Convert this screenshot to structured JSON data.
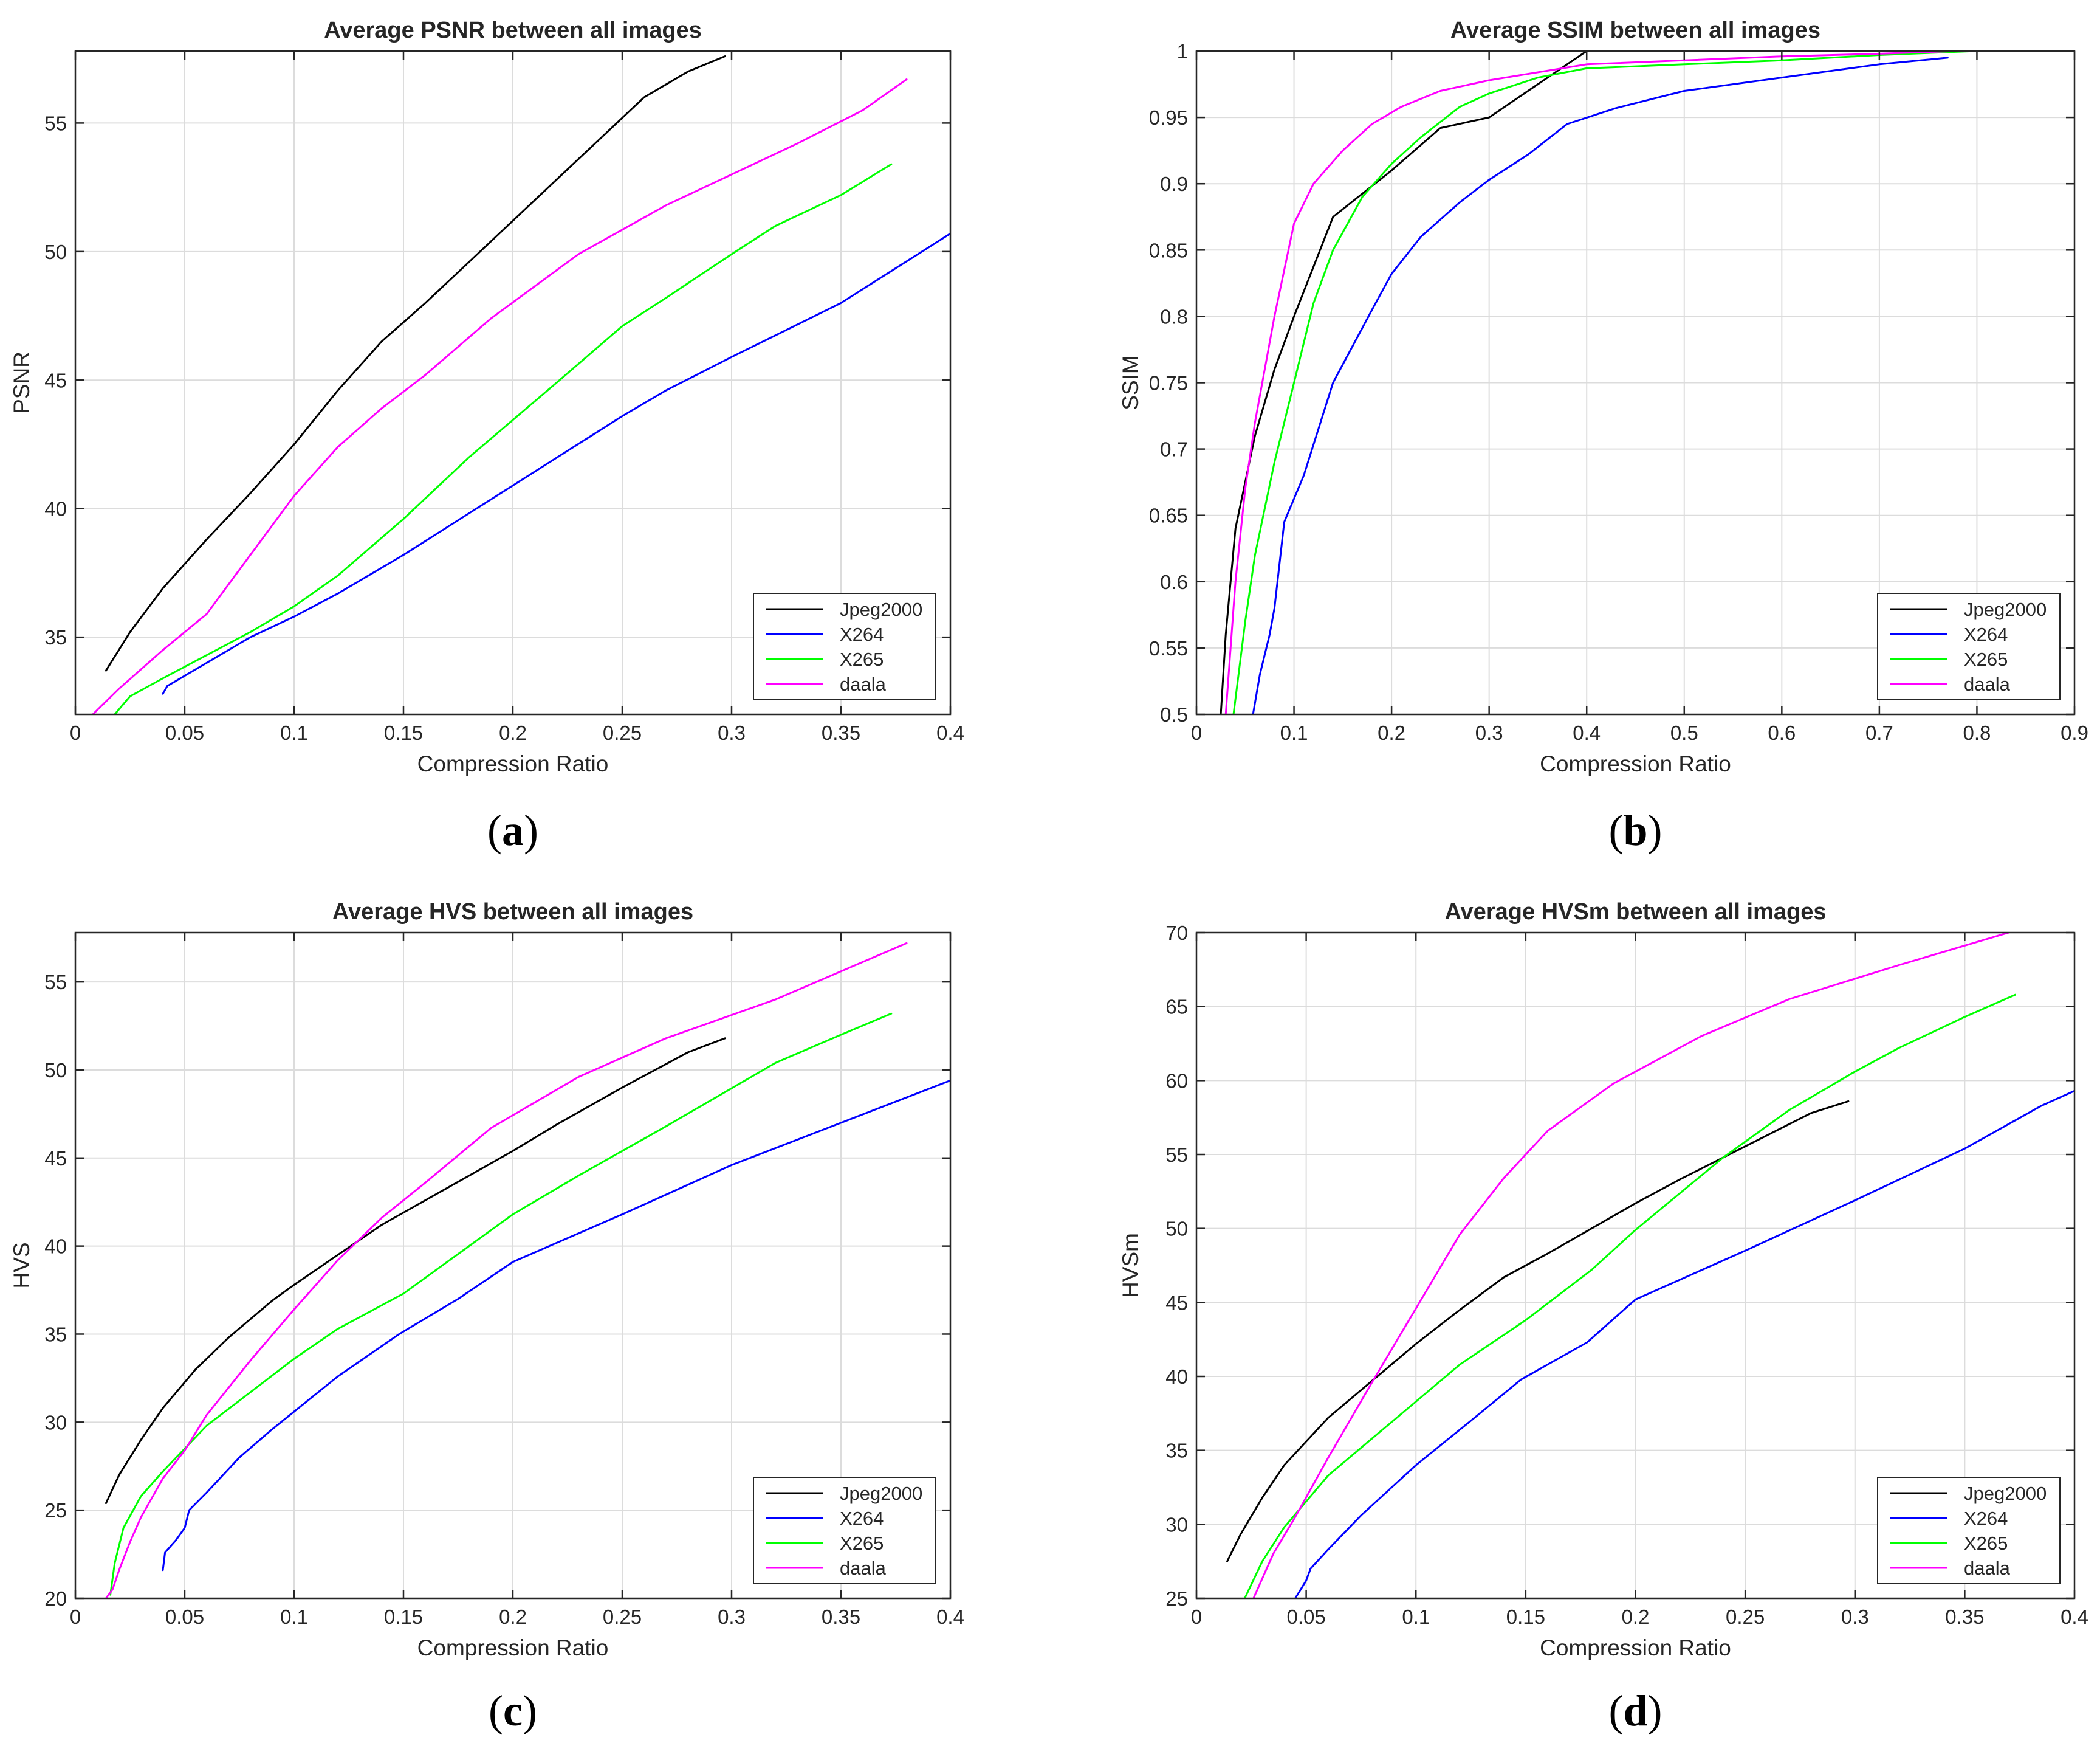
{
  "colors": {
    "Jpeg2000": "#000000",
    "X264": "#0000ff",
    "X265": "#00ff00",
    "daala": "#ff00ff"
  },
  "legend": [
    "Jpeg2000",
    "X264",
    "X265",
    "daala"
  ],
  "chart_data": [
    {
      "id": "a",
      "type": "line",
      "caption": "a",
      "title": "Average PSNR between all images",
      "xlabel": "Compression Ratio",
      "ylabel": "PSNR",
      "xlim": [
        0,
        0.4
      ],
      "ylim": [
        32,
        57.8
      ],
      "xticks": [
        0,
        0.05,
        0.1,
        0.15,
        0.2,
        0.25,
        0.3,
        0.35,
        0.4
      ],
      "xtick_labels": [
        "0",
        "0.05",
        "0.1",
        "0.15",
        "0.2",
        "0.25",
        "0.3",
        "0.35",
        "0.4"
      ],
      "yticks": [
        35,
        40,
        45,
        50,
        55
      ],
      "ytick_labels": [
        "35",
        "40",
        "45",
        "50",
        "55"
      ],
      "grid": true,
      "legend_position": "bottom-right",
      "series": [
        {
          "name": "Jpeg2000",
          "x": [
            0.014,
            0.025,
            0.04,
            0.06,
            0.08,
            0.1,
            0.12,
            0.14,
            0.16,
            0.18,
            0.2,
            0.22,
            0.24,
            0.26,
            0.28,
            0.297
          ],
          "y": [
            33.7,
            35.2,
            36.9,
            38.8,
            40.6,
            42.5,
            44.6,
            46.5,
            48.0,
            49.6,
            51.2,
            52.8,
            54.4,
            56.0,
            57.0,
            57.6
          ]
        },
        {
          "name": "X264",
          "x": [
            0.04,
            0.042,
            0.05,
            0.06,
            0.08,
            0.1,
            0.12,
            0.15,
            0.2,
            0.25,
            0.27,
            0.3,
            0.35,
            0.4
          ],
          "y": [
            32.8,
            33.1,
            33.5,
            34.0,
            35.0,
            35.8,
            36.7,
            38.2,
            40.9,
            43.6,
            44.6,
            45.9,
            48.0,
            50.7
          ]
        },
        {
          "name": "X265",
          "x": [
            0.018,
            0.025,
            0.04,
            0.06,
            0.08,
            0.1,
            0.12,
            0.15,
            0.18,
            0.22,
            0.25,
            0.27,
            0.3,
            0.32,
            0.35,
            0.373
          ],
          "y": [
            32.0,
            32.7,
            33.4,
            34.3,
            35.2,
            36.2,
            37.4,
            39.6,
            42.0,
            44.9,
            47.1,
            48.2,
            49.9,
            51.0,
            52.2,
            53.4
          ]
        },
        {
          "name": "daala",
          "x": [
            0.008,
            0.02,
            0.04,
            0.06,
            0.08,
            0.1,
            0.12,
            0.14,
            0.16,
            0.19,
            0.23,
            0.27,
            0.3,
            0.33,
            0.36,
            0.38
          ],
          "y": [
            32.0,
            33.0,
            34.5,
            35.9,
            38.2,
            40.5,
            42.4,
            43.9,
            45.2,
            47.4,
            49.9,
            51.8,
            53.0,
            54.2,
            55.5,
            56.7
          ]
        }
      ]
    },
    {
      "id": "b",
      "type": "line",
      "caption": "b",
      "title": "Average SSIM between all images",
      "xlabel": "Compression Ratio",
      "ylabel": "SSIM",
      "xlim": [
        0,
        0.9
      ],
      "ylim": [
        0.5,
        1
      ],
      "xticks": [
        0,
        0.1,
        0.2,
        0.3,
        0.4,
        0.5,
        0.6,
        0.7,
        0.8,
        0.9
      ],
      "xtick_labels": [
        "0",
        "0.1",
        "0.2",
        "0.3",
        "0.4",
        "0.5",
        "0.6",
        "0.7",
        "0.8",
        "0.9"
      ],
      "yticks": [
        0.5,
        0.55,
        0.6,
        0.65,
        0.7,
        0.75,
        0.8,
        0.85,
        0.9,
        0.95,
        1
      ],
      "ytick_labels": [
        "0.5",
        "0.55",
        "0.6",
        "0.65",
        "0.7",
        "0.75",
        "0.8",
        "0.85",
        "0.9",
        "0.95",
        "1"
      ],
      "grid": true,
      "legend_position": "bottom-right",
      "series": [
        {
          "name": "Jpeg2000",
          "x": [
            0.025,
            0.03,
            0.04,
            0.06,
            0.08,
            0.1,
            0.14,
            0.2,
            0.25,
            0.3,
            0.35,
            0.4
          ],
          "y": [
            0.5,
            0.56,
            0.64,
            0.71,
            0.76,
            0.8,
            0.875,
            0.91,
            0.942,
            0.95,
            0.975,
            1.0
          ]
        },
        {
          "name": "X264",
          "x": [
            0.058,
            0.065,
            0.075,
            0.08,
            0.09,
            0.11,
            0.14,
            0.18,
            0.2,
            0.23,
            0.27,
            0.3,
            0.34,
            0.38,
            0.43,
            0.5,
            0.6,
            0.7,
            0.77
          ],
          "y": [
            0.5,
            0.53,
            0.56,
            0.58,
            0.645,
            0.68,
            0.75,
            0.805,
            0.832,
            0.86,
            0.886,
            0.903,
            0.922,
            0.945,
            0.957,
            0.97,
            0.98,
            0.99,
            0.995
          ]
        },
        {
          "name": "X265",
          "x": [
            0.038,
            0.05,
            0.06,
            0.08,
            0.1,
            0.12,
            0.14,
            0.17,
            0.2,
            0.23,
            0.27,
            0.3,
            0.35,
            0.4,
            0.5,
            0.6,
            0.7,
            0.8
          ],
          "y": [
            0.5,
            0.57,
            0.62,
            0.69,
            0.75,
            0.81,
            0.85,
            0.89,
            0.915,
            0.935,
            0.958,
            0.968,
            0.98,
            0.987,
            0.99,
            0.993,
            0.997,
            1.0
          ]
        },
        {
          "name": "daala",
          "x": [
            0.03,
            0.04,
            0.05,
            0.06,
            0.08,
            0.1,
            0.12,
            0.15,
            0.18,
            0.21,
            0.25,
            0.3,
            0.4,
            0.5,
            0.6,
            0.7,
            0.78
          ],
          "y": [
            0.5,
            0.6,
            0.67,
            0.72,
            0.8,
            0.87,
            0.9,
            0.925,
            0.945,
            0.958,
            0.97,
            0.978,
            0.99,
            0.993,
            0.996,
            0.998,
            1.0
          ]
        }
      ]
    },
    {
      "id": "c",
      "type": "line",
      "caption": "c",
      "title": "Average HVS between all images",
      "xlabel": "Compression Ratio",
      "ylabel": "HVS",
      "xlim": [
        0,
        0.4
      ],
      "ylim": [
        20,
        57.8
      ],
      "xticks": [
        0,
        0.05,
        0.1,
        0.15,
        0.2,
        0.25,
        0.3,
        0.35,
        0.4
      ],
      "xtick_labels": [
        "0",
        "0.05",
        "0.1",
        "0.15",
        "0.2",
        "0.25",
        "0.3",
        "0.35",
        "0.4"
      ],
      "yticks": [
        20,
        25,
        30,
        35,
        40,
        45,
        50,
        55
      ],
      "ytick_labels": [
        "20",
        "25",
        "30",
        "35",
        "40",
        "45",
        "50",
        "55"
      ],
      "grid": true,
      "legend_position": "bottom-right",
      "series": [
        {
          "name": "Jpeg2000",
          "x": [
            0.014,
            0.02,
            0.03,
            0.04,
            0.055,
            0.07,
            0.09,
            0.1,
            0.12,
            0.14,
            0.16,
            0.18,
            0.2,
            0.22,
            0.25,
            0.28,
            0.297
          ],
          "y": [
            25.4,
            27.0,
            29.0,
            30.8,
            33.0,
            34.8,
            36.9,
            37.8,
            39.5,
            41.2,
            42.6,
            44.0,
            45.4,
            46.9,
            49.0,
            51.0,
            51.8
          ]
        },
        {
          "name": "X264",
          "x": [
            0.04,
            0.041,
            0.046,
            0.05,
            0.052,
            0.06,
            0.075,
            0.09,
            0.1,
            0.12,
            0.148,
            0.175,
            0.2,
            0.25,
            0.3,
            0.35,
            0.4
          ],
          "y": [
            21.6,
            22.6,
            23.3,
            24.0,
            25.0,
            26.0,
            28.0,
            29.6,
            30.6,
            32.6,
            35.0,
            37.0,
            39.1,
            41.8,
            44.6,
            47.0,
            49.4
          ]
        },
        {
          "name": "X265",
          "x": [
            0.016,
            0.018,
            0.022,
            0.03,
            0.04,
            0.05,
            0.06,
            0.08,
            0.1,
            0.12,
            0.15,
            0.18,
            0.2,
            0.23,
            0.27,
            0.32,
            0.35,
            0.373
          ],
          "y": [
            20.2,
            22.0,
            24.0,
            25.8,
            27.2,
            28.5,
            29.8,
            31.7,
            33.6,
            35.3,
            37.3,
            40.0,
            41.8,
            44.0,
            46.8,
            50.4,
            52.0,
            53.2
          ]
        },
        {
          "name": "daala",
          "x": [
            0.014,
            0.017,
            0.02,
            0.025,
            0.03,
            0.04,
            0.05,
            0.06,
            0.08,
            0.1,
            0.12,
            0.14,
            0.16,
            0.19,
            0.23,
            0.27,
            0.32,
            0.38
          ],
          "y": [
            20.0,
            20.5,
            21.6,
            23.2,
            24.6,
            26.8,
            28.4,
            30.4,
            33.5,
            36.4,
            39.2,
            41.6,
            43.6,
            46.7,
            49.6,
            51.8,
            54.0,
            57.2
          ]
        }
      ]
    },
    {
      "id": "d",
      "type": "line",
      "caption": "d",
      "title": "Average HVSm between all images",
      "xlabel": "Compression Ratio",
      "ylabel": "HVSm",
      "xlim": [
        0,
        0.4
      ],
      "ylim": [
        25,
        70
      ],
      "xticks": [
        0,
        0.05,
        0.1,
        0.15,
        0.2,
        0.25,
        0.3,
        0.35,
        0.4
      ],
      "xtick_labels": [
        "0",
        "0.05",
        "0.1",
        "0.15",
        "0.2",
        "0.25",
        "0.3",
        "0.35",
        "0.4"
      ],
      "yticks": [
        25,
        30,
        35,
        40,
        45,
        50,
        55,
        60,
        65,
        70
      ],
      "ytick_labels": [
        "25",
        "30",
        "35",
        "40",
        "45",
        "50",
        "55",
        "60",
        "65",
        "70"
      ],
      "grid": true,
      "legend_position": "bottom-right",
      "series": [
        {
          "name": "Jpeg2000",
          "x": [
            0.014,
            0.02,
            0.03,
            0.04,
            0.06,
            0.08,
            0.1,
            0.12,
            0.14,
            0.16,
            0.18,
            0.2,
            0.22,
            0.24,
            0.26,
            0.28,
            0.297
          ],
          "y": [
            27.5,
            29.3,
            31.8,
            34.0,
            37.2,
            39.7,
            42.2,
            44.5,
            46.7,
            48.3,
            50.0,
            51.7,
            53.3,
            54.8,
            56.3,
            57.8,
            58.6
          ]
        },
        {
          "name": "X264",
          "x": [
            0.045,
            0.05,
            0.052,
            0.06,
            0.075,
            0.1,
            0.125,
            0.148,
            0.178,
            0.2,
            0.25,
            0.3,
            0.35,
            0.385,
            0.4
          ],
          "y": [
            25.0,
            26.2,
            27.0,
            28.3,
            30.6,
            34.0,
            37.0,
            39.8,
            42.3,
            45.2,
            48.5,
            51.9,
            55.4,
            58.3,
            59.3
          ]
        },
        {
          "name": "X265",
          "x": [
            0.022,
            0.03,
            0.04,
            0.06,
            0.08,
            0.1,
            0.12,
            0.15,
            0.18,
            0.2,
            0.24,
            0.27,
            0.3,
            0.32,
            0.35,
            0.373
          ],
          "y": [
            25.0,
            27.5,
            29.8,
            33.3,
            35.8,
            38.3,
            40.8,
            43.8,
            47.2,
            49.9,
            54.8,
            58.0,
            60.6,
            62.2,
            64.3,
            65.8
          ]
        },
        {
          "name": "daala",
          "x": [
            0.026,
            0.035,
            0.045,
            0.06,
            0.08,
            0.1,
            0.12,
            0.14,
            0.16,
            0.19,
            0.23,
            0.27,
            0.32,
            0.37
          ],
          "y": [
            25.0,
            28.0,
            30.5,
            34.5,
            39.6,
            44.6,
            49.6,
            53.4,
            56.6,
            59.8,
            63.0,
            65.5,
            67.8,
            70.0
          ]
        }
      ]
    }
  ]
}
